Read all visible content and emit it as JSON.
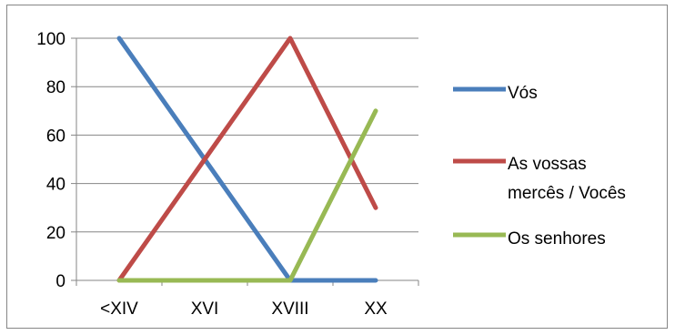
{
  "chart_data": {
    "type": "line",
    "categories": [
      "<XIV",
      "XVI",
      "XVIII",
      "XX"
    ],
    "ylim": [
      0,
      100
    ],
    "yticks": [
      0,
      20,
      40,
      60,
      80,
      100
    ],
    "grid": "horizontal",
    "legend_position": "right",
    "series": [
      {
        "name": "Vós",
        "color": "#4a7ebb",
        "values": [
          100,
          50,
          0,
          0
        ]
      },
      {
        "name": "As vossas mercês / Vocês",
        "legend_lines": [
          "As vossas",
          "mercês / Vocês"
        ],
        "color": "#be4b48",
        "values": [
          0,
          50,
          100,
          30
        ]
      },
      {
        "name": "Os senhores",
        "color": "#98b954",
        "values": [
          0,
          0,
          0,
          70
        ]
      }
    ]
  }
}
